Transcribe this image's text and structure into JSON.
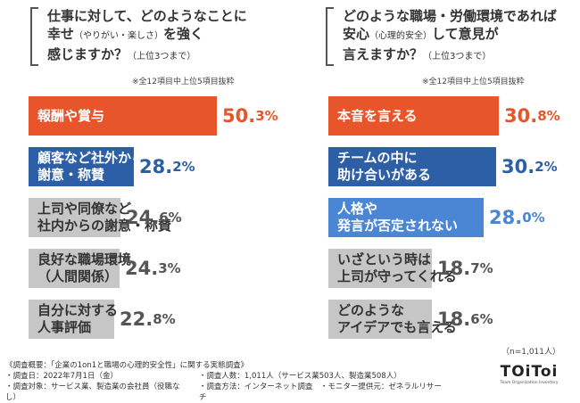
{
  "colors": {
    "orange": "#e8552b",
    "blue": "#2d5fa6",
    "light_blue": "#4a86d4",
    "gray": "#c6c6c6",
    "text_dark": "#333333"
  },
  "chart_data": [
    {
      "type": "bar",
      "orientation": "horizontal",
      "title": "仕事に対して、どのようなことに幸せ（やりがい・楽しさ）を強く感じますか？",
      "title_note": "（上位3つまで）",
      "note": "※全12項目中上位5項目抜粋",
      "categories": [
        "報酬や賞与",
        "顧客など社外からの謝意・称賛",
        "上司や同僚など社内からの謝意・称賛",
        "良好な職場環境（人間関係）",
        "自分に対する人事評価"
      ],
      "values": [
        50.3,
        28.2,
        24.6,
        24.3,
        22.8
      ],
      "unit": "%",
      "bar_colors": [
        "#e8552b",
        "#2d5fa6",
        "#c6c6c6",
        "#c6c6c6",
        "#c6c6c6"
      ]
    },
    {
      "type": "bar",
      "orientation": "horizontal",
      "title": "どのような職場・労働環境であれば安心（心理的安全）して意見が言えますか？",
      "title_note": "（上位3つまで）",
      "note": "※全12項目中上位5項目抜粋",
      "categories": [
        "本音を言える",
        "チームの中に助け合いがある",
        "人格や発言が否定されない",
        "いざという時は上司が守ってくれる",
        "どのようなアイデアでも言える"
      ],
      "values": [
        30.8,
        30.2,
        28.0,
        18.7,
        18.6
      ],
      "unit": "%",
      "bar_colors": [
        "#e8552b",
        "#2d5fa6",
        "#4a86d4",
        "#c6c6c6",
        "#c6c6c6"
      ]
    }
  ],
  "left": {
    "title_lines": [
      "仕事に対して、どのようなことに",
      "幸せ",
      "（やりがい・楽しさ）",
      "を強く",
      "感じますか？",
      "（上位3つまで）"
    ],
    "note": "※全12項目中上位5項目抜粋",
    "bars": [
      {
        "label": "報酬や賞与",
        "value_main": "50.",
        "value_dec": "3%"
      },
      {
        "label": "顧客など社外からの\n謝意・称賛",
        "value_main": "28.",
        "value_dec": "2%"
      },
      {
        "label": "上司や同僚など\n社内からの謝意・称賛",
        "value_main": "24.",
        "value_dec": "6%"
      },
      {
        "label": "良好な職場環境\n（人間関係）",
        "value_main": "24.",
        "value_dec": "3%"
      },
      {
        "label": "自分に対する\n人事評価",
        "value_main": "22.",
        "value_dec": "8%"
      }
    ]
  },
  "right": {
    "title_lines": [
      "どのような職場・労働環境であれば",
      "安心",
      "（心理的安全）",
      "して意見が",
      "言えますか？",
      "（上位3つまで）"
    ],
    "note": "※全12項目中上位5項目抜粋",
    "bars": [
      {
        "label": "本音を言える",
        "value_main": "30.",
        "value_dec": "8%"
      },
      {
        "label": "チームの中に\n助け合いがある",
        "value_main": "30.",
        "value_dec": "2%"
      },
      {
        "label": "人格や\n発言が否定されない",
        "value_main": "28.",
        "value_dec": "0%"
      },
      {
        "label": "いざという時は\n上司が守ってくれる",
        "value_main": "18.",
        "value_dec": "7%"
      },
      {
        "label": "どのような\nアイデアでも言える",
        "value_main": "18.",
        "value_dec": "6%"
      }
    ]
  },
  "n_note": "（n=1,011人）",
  "footer": {
    "line1": "《調査概要：「企業の1on1と職場の心理的安全性」に関する実態調査》",
    "col1": [
      "・調査日：2022年7月1日（金）",
      "・調査対象：サービス業、製造業の会社員（役職なし）"
    ],
    "col2": [
      "・調査人数：1,011人（サービス業503人、製造業508人）",
      "・調査方法：インターネット調査　・モニター提供元：ゼネラルリサーチ"
    ]
  },
  "logo": {
    "mark": "TOiToi",
    "tagline": "Team Organization Inventory"
  }
}
